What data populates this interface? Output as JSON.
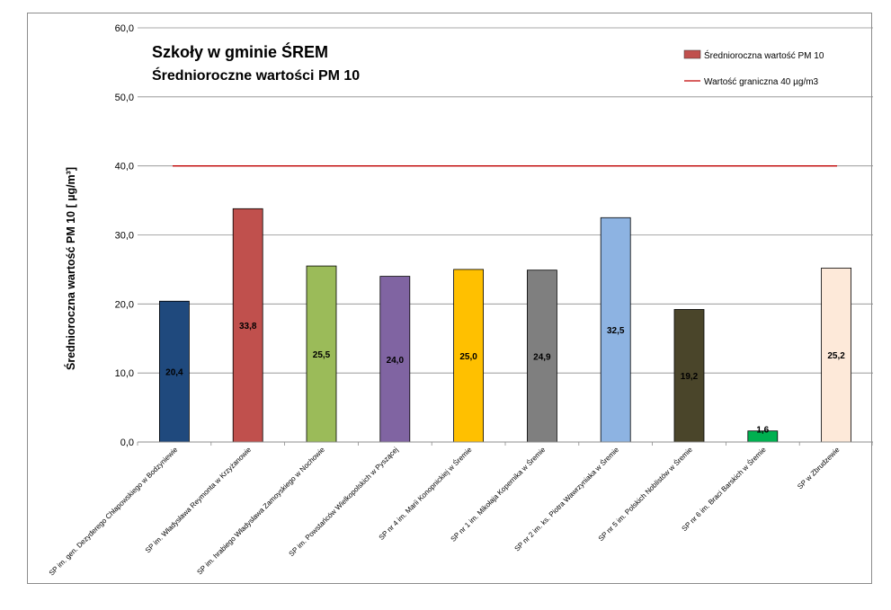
{
  "chart_data": {
    "type": "bar",
    "title": "Szkoły w gminie ŚREM",
    "subtitle": "Średnioroczne wartości PM 10",
    "ylabel": "Średnioroczna wartość PM 10  [ µg/m³]",
    "ylim": [
      0,
      60
    ],
    "yticks": [
      0,
      10,
      20,
      30,
      40,
      50,
      60
    ],
    "ytick_labels": [
      "0,0",
      "10,0",
      "20,0",
      "30,0",
      "40,0",
      "50,0",
      "60,0"
    ],
    "grid": true,
    "legend_position": "top-right",
    "categories": [
      "SP im. gen. Dezyderego Chłapowskiego w Bodzyniewie",
      "SP im. Władysława Reymonta w Krzyżanowie",
      "SP im. hrabiego Władysława Zamoyskiego w Nochowie",
      "SP im. Powstańców Wielkopolskich w Pyszącej",
      "SP nr 4 im. Marii Konopnickiej w Śremie",
      "SP nr 1 im. Mikołaja Kopernika w Śremie",
      "SP nr 2 im. ks. Piotra Wawrzyniaka w Śremie",
      "SP nr 5 im. Polskich Noblistów w Śremie",
      "SP nr 6 im. Braci Barskich w Śremie",
      "SP w Zbrudzewie"
    ],
    "series": [
      {
        "name": "Średnioroczna wartość PM 10",
        "values": [
          20.4,
          33.8,
          25.5,
          24.0,
          25.0,
          24.9,
          32.5,
          19.2,
          1.6,
          25.2
        ],
        "value_labels": [
          "20,4",
          "33,8",
          "25,5",
          "24,0",
          "25,0",
          "24,9",
          "32,5",
          "19,2",
          "1,6",
          "25,2"
        ],
        "colors": [
          "#1f497d",
          "#c0504d",
          "#9bbb59",
          "#8064a2",
          "#ffc000",
          "#7f7f7f",
          "#8db3e2",
          "#4a452a",
          "#00b050",
          "#fde9d9"
        ]
      }
    ],
    "limit_line": {
      "name": "Wartość graniczna 40 µg/m3",
      "value": 40,
      "color": "#c00000"
    }
  }
}
